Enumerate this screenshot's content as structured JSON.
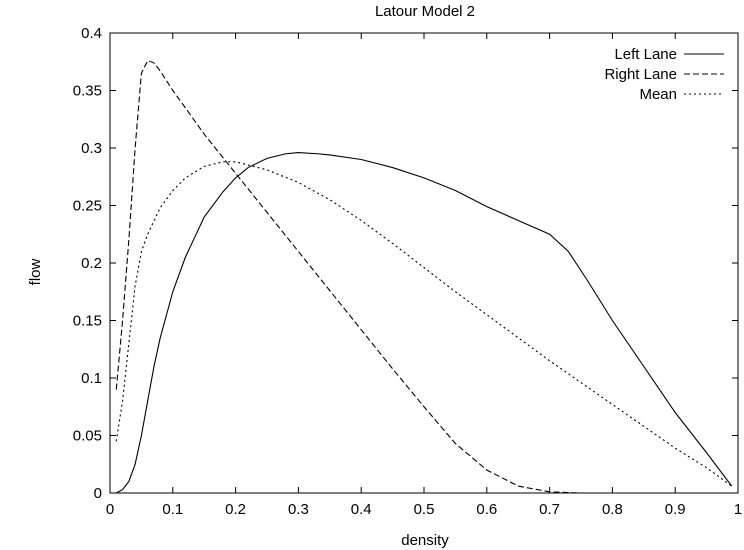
{
  "chart_data": {
    "type": "line",
    "title": "Latour Model 2",
    "xlabel": "density",
    "ylabel": "flow",
    "xlim": [
      0,
      1
    ],
    "ylim": [
      0,
      0.4
    ],
    "x_ticks": [
      "0",
      "0.1",
      "0.2",
      "0.3",
      "0.4",
      "0.5",
      "0.6",
      "0.7",
      "0.8",
      "0.9",
      "1"
    ],
    "y_ticks": [
      "0",
      "0.05",
      "0.1",
      "0.15",
      "0.2",
      "0.25",
      "0.3",
      "0.35",
      "0.4"
    ],
    "grid": false,
    "legend_position": "top-right",
    "series": [
      {
        "name": "Left Lane",
        "style": "solid",
        "points": [
          [
            0.01,
            0.0
          ],
          [
            0.02,
            0.003
          ],
          [
            0.03,
            0.01
          ],
          [
            0.04,
            0.025
          ],
          [
            0.05,
            0.05
          ],
          [
            0.06,
            0.08
          ],
          [
            0.07,
            0.11
          ],
          [
            0.08,
            0.135
          ],
          [
            0.1,
            0.175
          ],
          [
            0.12,
            0.205
          ],
          [
            0.15,
            0.24
          ],
          [
            0.18,
            0.262
          ],
          [
            0.2,
            0.274
          ],
          [
            0.22,
            0.283
          ],
          [
            0.25,
            0.291
          ],
          [
            0.28,
            0.295
          ],
          [
            0.3,
            0.296
          ],
          [
            0.33,
            0.295
          ],
          [
            0.35,
            0.294
          ],
          [
            0.4,
            0.29
          ],
          [
            0.45,
            0.283
          ],
          [
            0.5,
            0.274
          ],
          [
            0.55,
            0.263
          ],
          [
            0.6,
            0.249
          ],
          [
            0.65,
            0.237
          ],
          [
            0.7,
            0.225
          ],
          [
            0.73,
            0.21
          ],
          [
            0.76,
            0.185
          ],
          [
            0.8,
            0.15
          ],
          [
            0.85,
            0.11
          ],
          [
            0.9,
            0.07
          ],
          [
            0.95,
            0.035
          ],
          [
            0.99,
            0.006
          ]
        ]
      },
      {
        "name": "Right Lane",
        "style": "dashed",
        "points": [
          [
            0.01,
            0.09
          ],
          [
            0.02,
            0.15
          ],
          [
            0.03,
            0.22
          ],
          [
            0.04,
            0.3
          ],
          [
            0.05,
            0.365
          ],
          [
            0.06,
            0.376
          ],
          [
            0.07,
            0.374
          ],
          [
            0.08,
            0.367
          ],
          [
            0.1,
            0.35
          ],
          [
            0.12,
            0.335
          ],
          [
            0.15,
            0.312
          ],
          [
            0.2,
            0.278
          ],
          [
            0.25,
            0.244
          ],
          [
            0.3,
            0.21
          ],
          [
            0.35,
            0.176
          ],
          [
            0.4,
            0.142
          ],
          [
            0.45,
            0.108
          ],
          [
            0.5,
            0.075
          ],
          [
            0.55,
            0.043
          ],
          [
            0.6,
            0.02
          ],
          [
            0.65,
            0.006
          ],
          [
            0.7,
            0.001
          ],
          [
            0.75,
            0.0
          ]
        ]
      },
      {
        "name": "Mean",
        "style": "dotted",
        "points": [
          [
            0.01,
            0.045
          ],
          [
            0.02,
            0.08
          ],
          [
            0.03,
            0.13
          ],
          [
            0.04,
            0.18
          ],
          [
            0.05,
            0.21
          ],
          [
            0.06,
            0.225
          ],
          [
            0.08,
            0.248
          ],
          [
            0.1,
            0.263
          ],
          [
            0.12,
            0.274
          ],
          [
            0.15,
            0.284
          ],
          [
            0.18,
            0.288
          ],
          [
            0.2,
            0.288
          ],
          [
            0.25,
            0.281
          ],
          [
            0.3,
            0.27
          ],
          [
            0.35,
            0.255
          ],
          [
            0.4,
            0.237
          ],
          [
            0.45,
            0.217
          ],
          [
            0.5,
            0.196
          ],
          [
            0.55,
            0.175
          ],
          [
            0.6,
            0.155
          ],
          [
            0.65,
            0.135
          ],
          [
            0.7,
            0.115
          ],
          [
            0.75,
            0.096
          ],
          [
            0.8,
            0.077
          ],
          [
            0.85,
            0.058
          ],
          [
            0.9,
            0.039
          ],
          [
            0.95,
            0.022
          ],
          [
            0.99,
            0.006
          ]
        ]
      }
    ]
  }
}
